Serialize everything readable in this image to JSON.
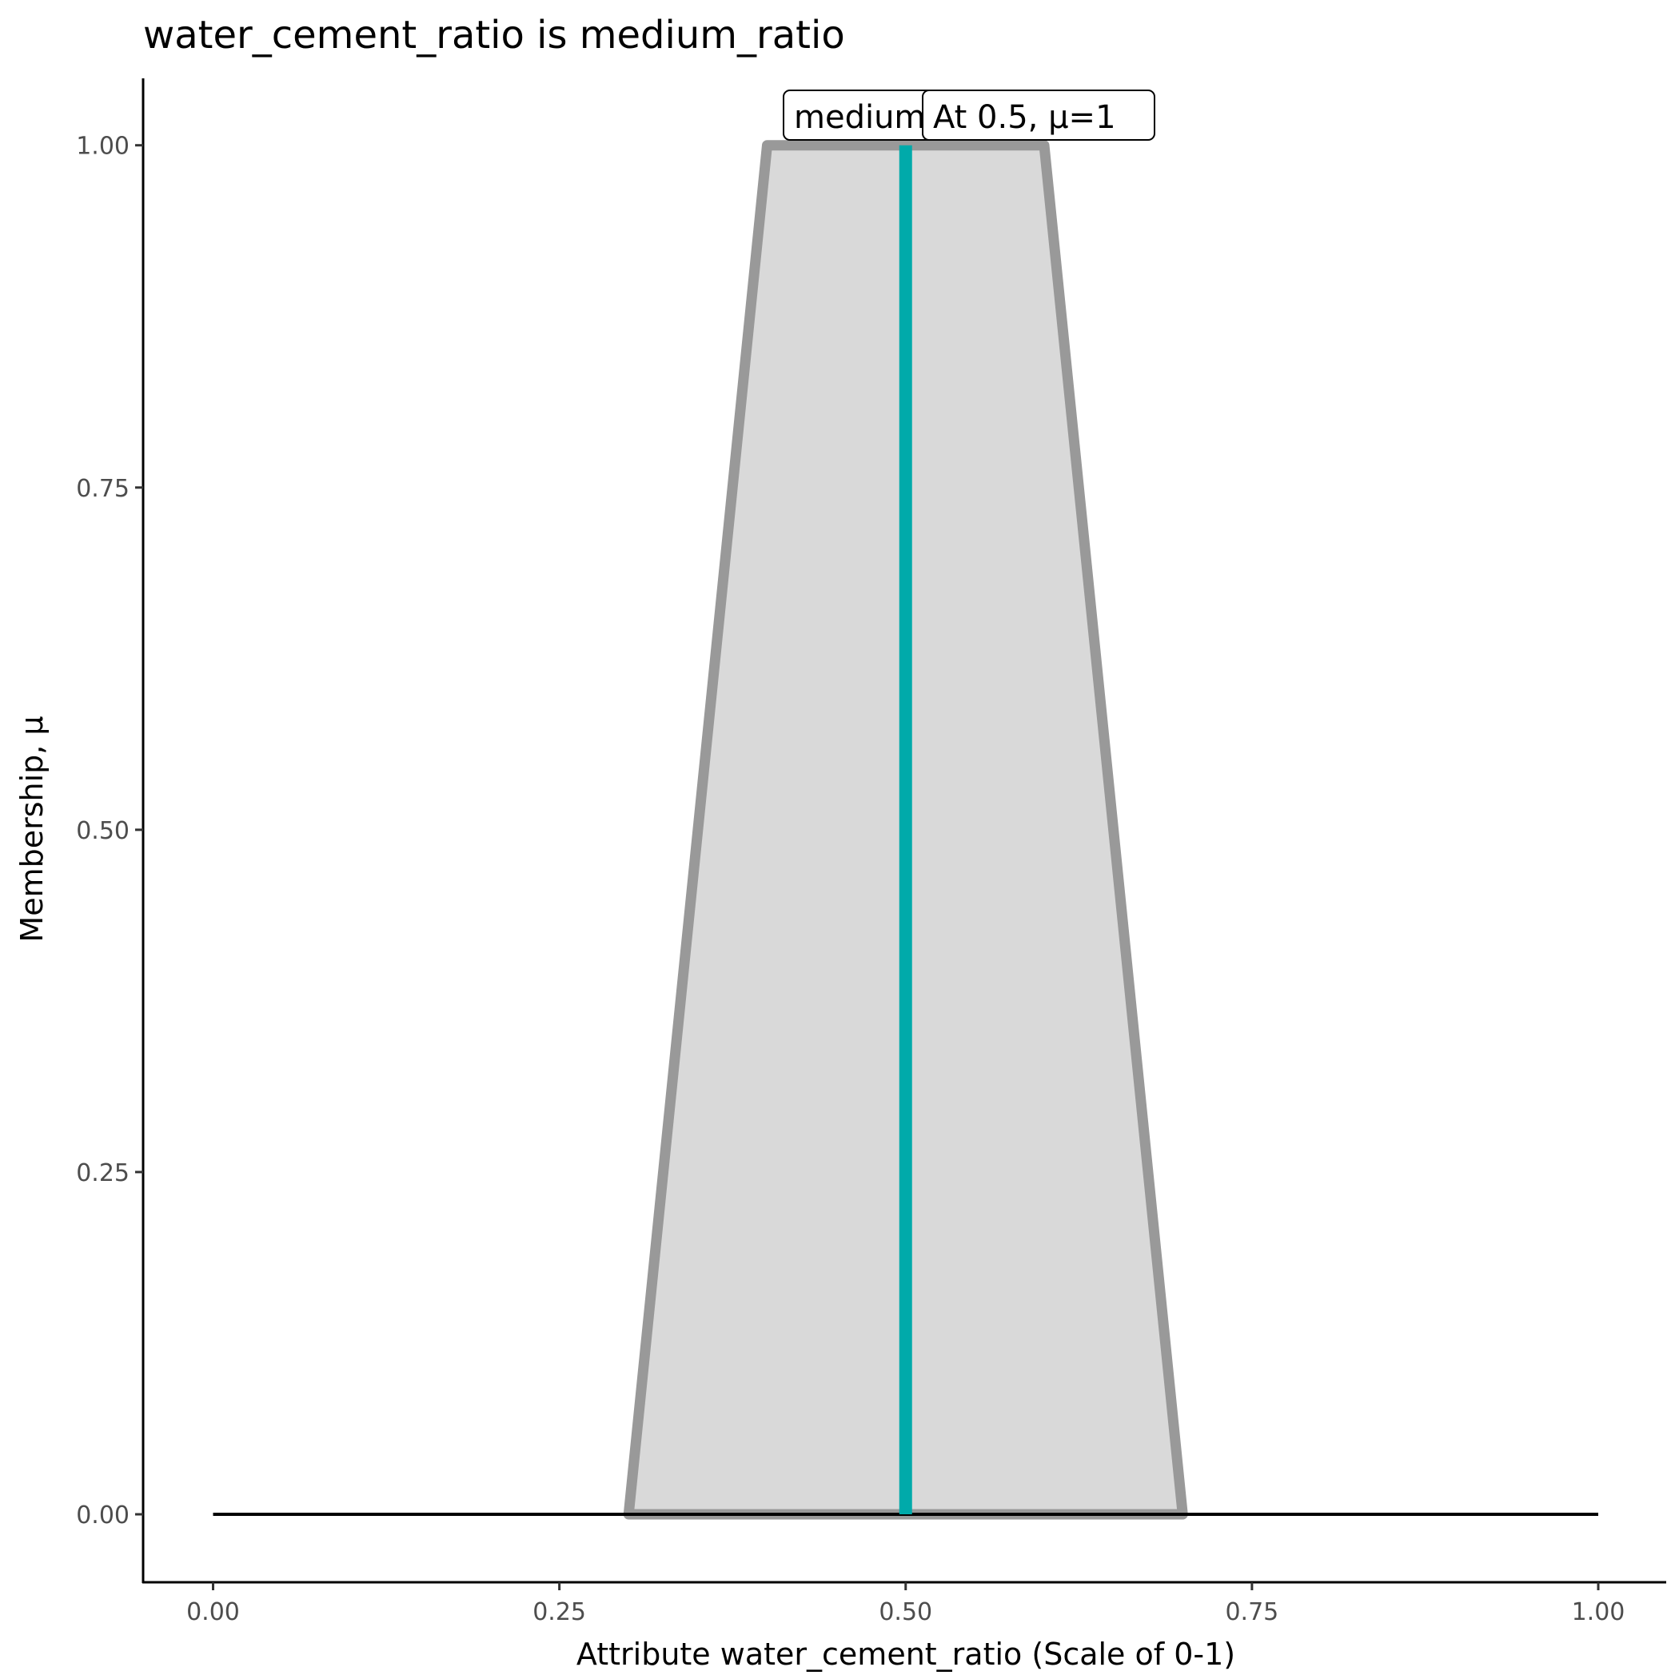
{
  "chart_data": {
    "type": "area",
    "title": "water_cement_ratio is medium_ratio",
    "xlabel": "Attribute water_cement_ratio (Scale of 0-1)",
    "ylabel": "Membership, μ",
    "xlim": [
      -0.05,
      1.05
    ],
    "ylim": [
      -0.05,
      1.05
    ],
    "x_ticks": [
      0,
      0.25,
      0.5,
      0.75,
      1
    ],
    "x_tick_labels": [
      "0.00",
      "0.25",
      "0.50",
      "0.75",
      "1.00"
    ],
    "y_ticks": [
      0,
      0.25,
      0.5,
      0.75,
      1
    ],
    "y_tick_labels": [
      "0.00",
      "0.25",
      "0.50",
      "0.75",
      "1.00"
    ],
    "grid": false,
    "membership_function": {
      "x": [
        0.3,
        0.4,
        0.6,
        0.7
      ],
      "y": [
        0,
        1,
        1,
        0
      ],
      "fill": "#D9D9D9",
      "stroke": "#999999"
    },
    "baseline": {
      "x": [
        0,
        1
      ],
      "y": 0,
      "color": "#000000"
    },
    "marker_line": {
      "x": 0.5,
      "y": [
        0,
        1
      ],
      "color": "#00AAAA"
    },
    "labels": [
      {
        "text": "medium",
        "x": 0.45,
        "y": 1
      },
      {
        "text": "At 0.5, μ=1",
        "x": 0.5,
        "y": 1
      }
    ]
  }
}
